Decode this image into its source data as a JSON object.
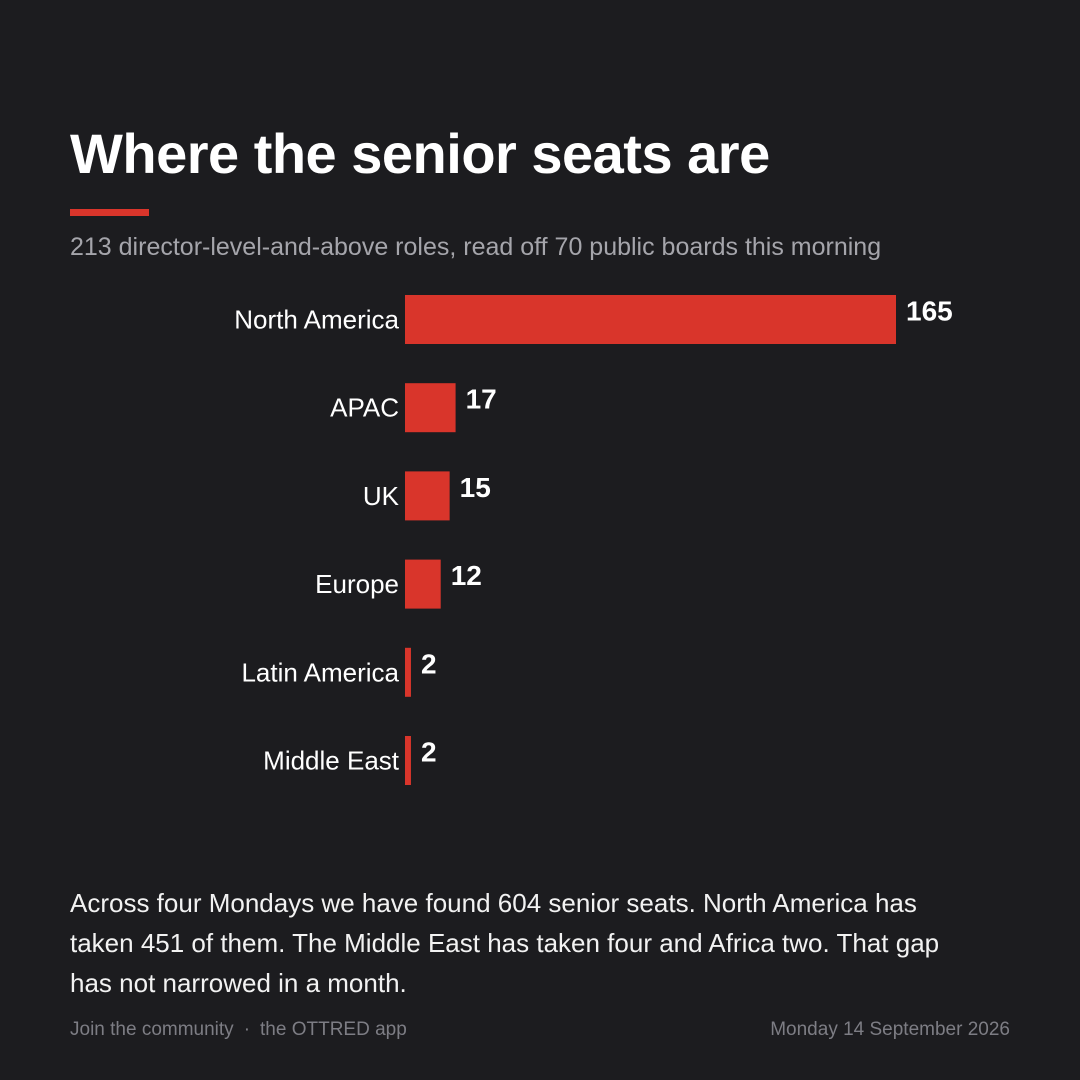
{
  "header": {
    "title": "Where the senior seats are",
    "subtitle": "213 director-level-and-above roles, read off 70 public boards this morning"
  },
  "colors": {
    "background": "#1c1c1f",
    "accent": "#d9352b",
    "text": "#ffffff",
    "muted": "#a5a5ab"
  },
  "chart_data": {
    "type": "bar",
    "orientation": "horizontal",
    "categories": [
      "North America",
      "APAC",
      "UK",
      "Europe",
      "Latin America",
      "Middle East"
    ],
    "values": [
      165,
      17,
      15,
      12,
      2,
      2
    ],
    "data_labels": true,
    "grid": false,
    "legend": "none"
  },
  "caption": "Across four Mondays we have found 604 senior seats. North America has taken 451 of them. The Middle East has taken four and Africa two. That gap has not narrowed in a month.",
  "footer": {
    "community": "Join the community",
    "separator": "·",
    "app": "the OTTRED app",
    "date": "Monday 14 September 2026"
  }
}
